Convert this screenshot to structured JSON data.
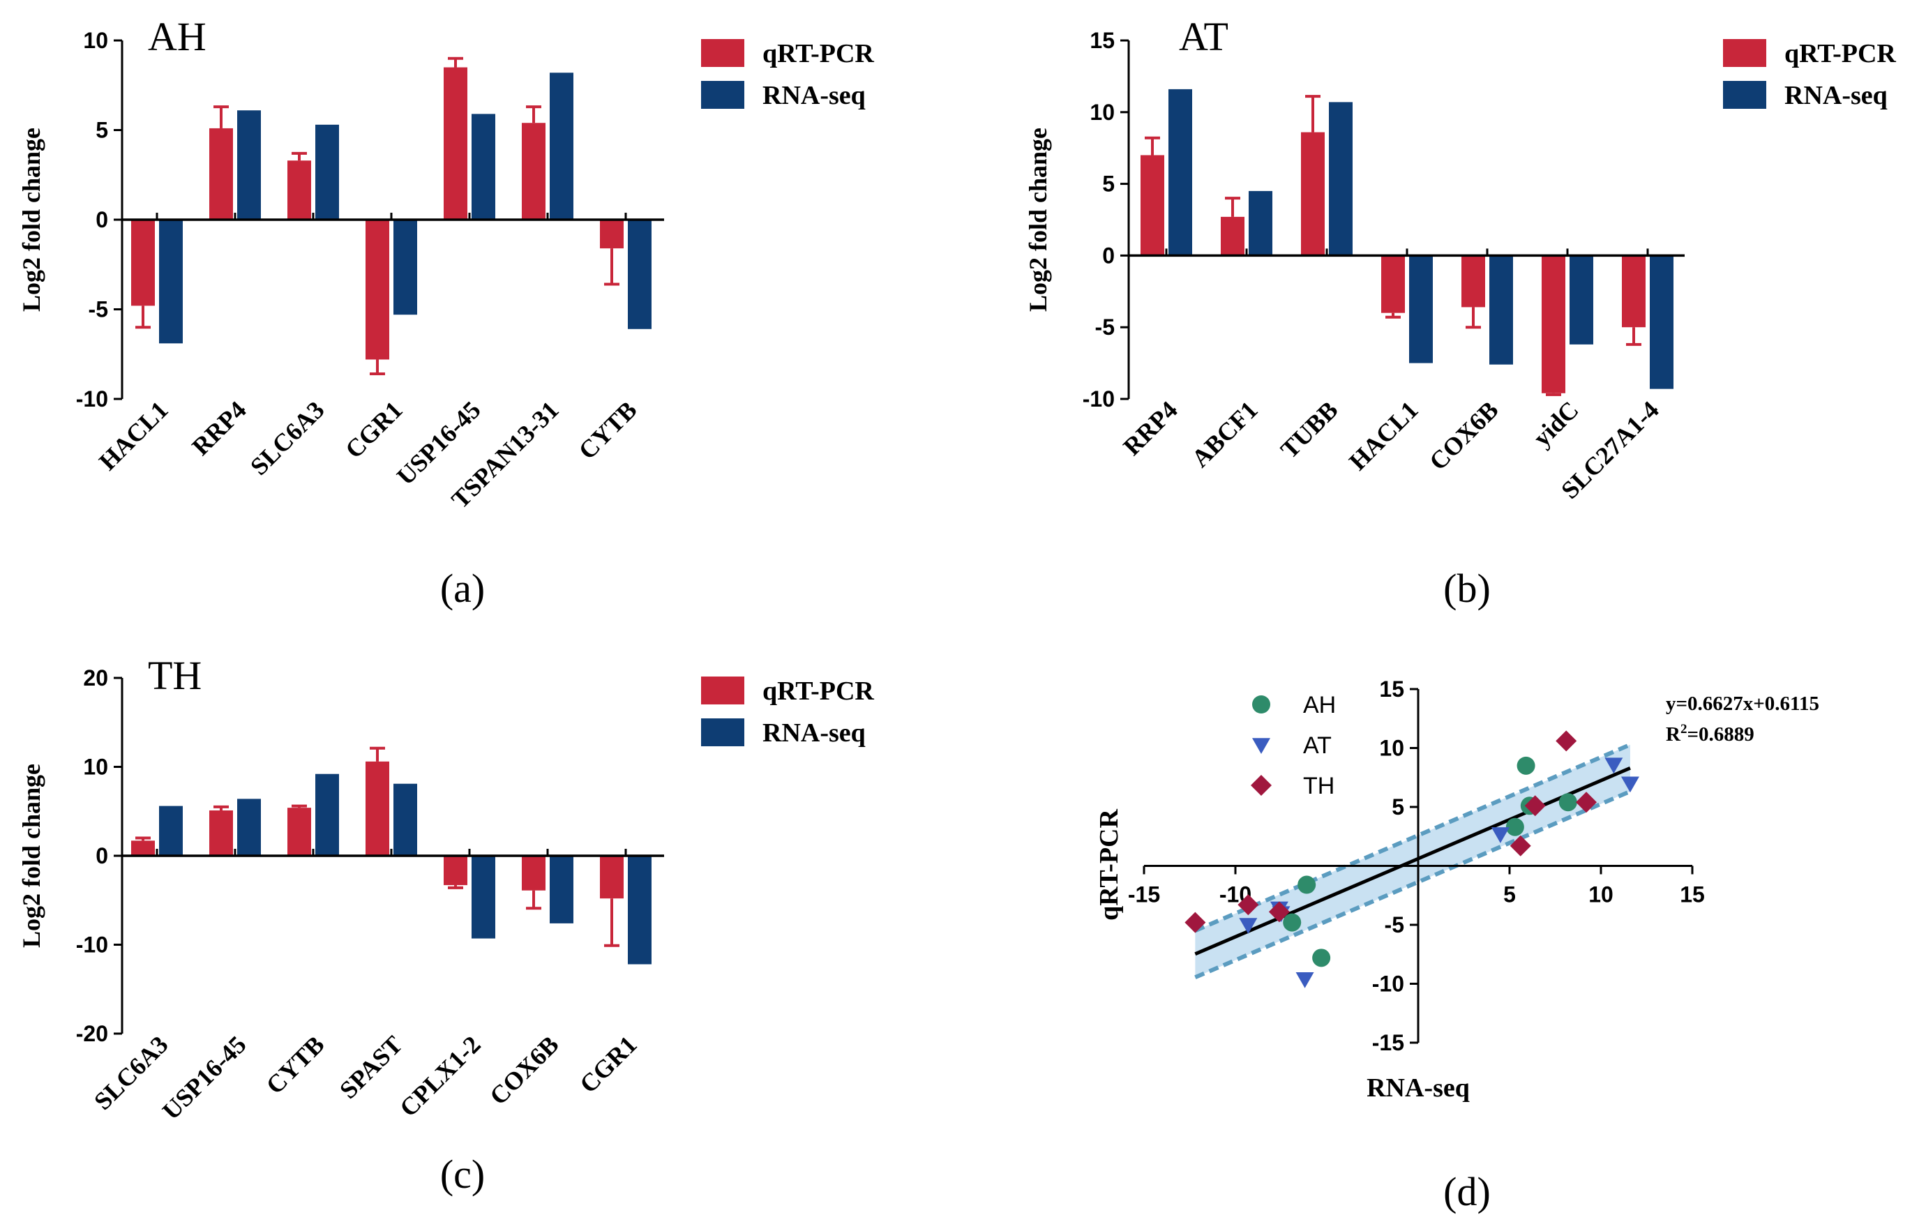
{
  "colors": {
    "qrt": "#c8263a",
    "rna": "#0e3d73",
    "ah": "#2e8b6a",
    "at": "#3a5cc0",
    "th": "#a0173e",
    "band": "#9cc9e8",
    "band_edge": "#5b9cc0"
  },
  "chart_data": [
    {
      "type": "bar",
      "panel": "(a)",
      "title": "AH",
      "ylabel": "Log2 fold change",
      "ylim": [
        -10,
        10
      ],
      "yticks": [
        "10",
        "5",
        "0",
        "-5",
        "-10"
      ],
      "yticks_values": [
        10,
        5,
        0,
        -5,
        -10
      ],
      "categories": [
        "HACL1",
        "RRP4",
        "SLC6A3",
        "CGR1",
        "USP16-45",
        "TSPAN13-31",
        "CYTB"
      ],
      "legend": [
        "qRT-PCR",
        "RNA-seq"
      ],
      "series": [
        {
          "name": "qRT-PCR",
          "values": [
            -4.8,
            5.1,
            3.3,
            -7.8,
            8.5,
            5.4,
            -1.6
          ],
          "errors": [
            1.2,
            1.2,
            0.4,
            0.8,
            0.5,
            0.9,
            2.0
          ]
        },
        {
          "name": "RNA-seq",
          "values": [
            -6.9,
            6.1,
            5.3,
            -5.3,
            5.9,
            8.2,
            -6.1
          ]
        }
      ]
    },
    {
      "type": "bar",
      "panel": "(b)",
      "title": "AT",
      "ylabel": "Log2 fold change",
      "ylim": [
        -10,
        15
      ],
      "yticks": [
        "15",
        "10",
        "5",
        "0",
        "-5",
        "-10"
      ],
      "yticks_values": [
        15,
        10,
        5,
        0,
        -5,
        -10
      ],
      "categories": [
        "RRP4",
        "ABCF1",
        "TUBB",
        "HACL1",
        "COX6B",
        "yidC",
        "SLC27A1-4"
      ],
      "legend": [
        "qRT-PCR",
        "RNA-seq"
      ],
      "series": [
        {
          "name": "qRT-PCR",
          "values": [
            7.0,
            2.7,
            8.6,
            -4.0,
            -3.6,
            -9.6,
            -5.0
          ],
          "errors": [
            1.2,
            1.3,
            2.5,
            0.3,
            1.4,
            0.1,
            1.2
          ]
        },
        {
          "name": "RNA-seq",
          "values": [
            11.6,
            4.5,
            10.7,
            -7.5,
            -7.6,
            -6.2,
            -9.3
          ]
        }
      ]
    },
    {
      "type": "bar",
      "panel": "(c)",
      "title": "TH",
      "ylabel": "Log2 fold change",
      "ylim": [
        -20,
        20
      ],
      "yticks": [
        "20",
        "10",
        "0",
        "-10",
        "-20"
      ],
      "yticks_values": [
        20,
        10,
        0,
        -10,
        -20
      ],
      "categories": [
        "SLC6A3",
        "USP16-45",
        "CYTB",
        "SPAST",
        "CPLX1-2",
        "COX6B",
        "CGR1"
      ],
      "legend": [
        "qRT-PCR",
        "RNA-seq"
      ],
      "series": [
        {
          "name": "qRT-PCR",
          "values": [
            1.7,
            5.1,
            5.4,
            10.6,
            -3.3,
            -3.9,
            -4.8
          ],
          "errors": [
            0.3,
            0.4,
            0.2,
            1.5,
            0.3,
            2.0,
            5.3
          ]
        },
        {
          "name": "RNA-seq",
          "values": [
            5.6,
            6.4,
            9.2,
            8.1,
            -9.3,
            -7.6,
            -12.2
          ]
        }
      ]
    },
    {
      "type": "scatter",
      "panel": "(d)",
      "xlabel": "RNA-seq",
      "ylabel": "qRT-PCR",
      "xlim": [
        -15,
        15
      ],
      "ylim": [
        -15,
        15
      ],
      "xticks": [
        "-15",
        "-10",
        "5",
        "10",
        "15"
      ],
      "xticks_values": [
        -15,
        -10,
        5,
        10,
        15
      ],
      "yticks": [
        "15",
        "10",
        "5",
        "-5",
        "-10",
        "-15"
      ],
      "yticks_values": [
        15,
        10,
        5,
        -5,
        -10,
        -15
      ],
      "equation": "y=0.6627x+0.6115",
      "r2_prefix": "R",
      "r2_sup": "2",
      "r2_value": "=0.6889",
      "fit": {
        "slope": 0.6627,
        "intercept": 0.6115,
        "x_range": [
          -12.2,
          11.6
        ],
        "band_half_width": 0.9
      },
      "legend": [
        "AH",
        "AT",
        "TH"
      ],
      "series": [
        {
          "name": "AH",
          "marker": "circle",
          "x": [
            -6.9,
            6.1,
            5.3,
            -5.3,
            5.9,
            8.2,
            -6.1
          ],
          "y": [
            -4.8,
            5.1,
            3.3,
            -7.8,
            8.5,
            5.4,
            -1.6
          ]
        },
        {
          "name": "AT",
          "marker": "triangle-down",
          "x": [
            11.6,
            4.5,
            10.7,
            -7.5,
            -7.6,
            -6.2,
            -9.3
          ],
          "y": [
            7.0,
            2.7,
            8.6,
            -4.0,
            -3.6,
            -9.6,
            -5.0
          ]
        },
        {
          "name": "TH",
          "marker": "diamond",
          "x": [
            5.6,
            6.4,
            9.2,
            8.1,
            -9.3,
            -7.6,
            -12.2
          ],
          "y": [
            1.7,
            5.1,
            5.4,
            10.6,
            -3.3,
            -3.9,
            -4.8
          ]
        }
      ]
    }
  ]
}
